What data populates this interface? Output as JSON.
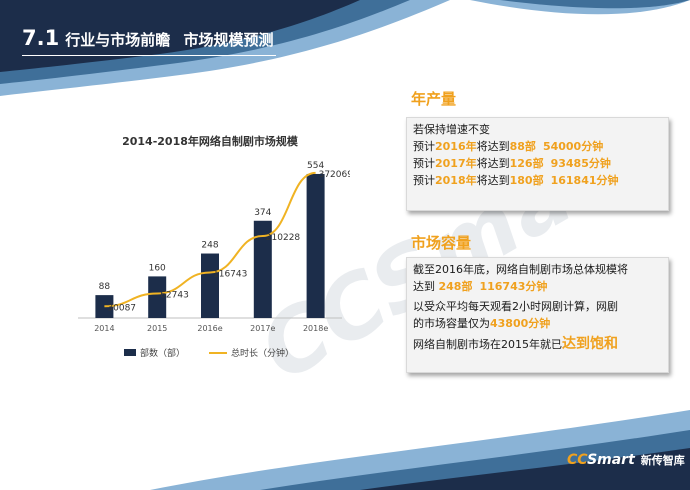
{
  "header": {
    "number": "7.1",
    "title_a": "行业与市场前瞻",
    "title_b": "市场规模预测"
  },
  "colors": {
    "navy": "#1c2d4a",
    "accent": "#f0a11e",
    "line": "#f0b323"
  },
  "chart_data": {
    "type": "bar",
    "title": "2014-2018年网络自制剧市场规模",
    "categories": [
      "2014",
      "2015",
      "2016e",
      "2017e",
      "2018e"
    ],
    "series": [
      {
        "name": "部数（部）",
        "type": "bar",
        "values": [
          88,
          160,
          248,
          374,
          554
        ]
      },
      {
        "name": "总时长（分钟）",
        "type": "line",
        "values": [
          30087,
          62743,
          116743,
          210228,
          372069
        ]
      }
    ],
    "ylim_bar": [
      0,
      600
    ],
    "ylim_line": [
      0,
      400000
    ],
    "grid": false,
    "legend": "bottom"
  },
  "annual_output": {
    "title": "年产量",
    "line1": "若保持增速不变",
    "rows": [
      {
        "prefix": "预计",
        "year": "2016年",
        "mid": "将达到",
        "count": "88部",
        "minutes": "54000分钟"
      },
      {
        "prefix": "预计",
        "year": "2017年",
        "mid": "将达到",
        "count": "126部",
        "minutes": "93485分钟"
      },
      {
        "prefix": "预计",
        "year": "2018年",
        "mid": "将达到",
        "count": "180部",
        "minutes": "161841分钟"
      }
    ]
  },
  "capacity": {
    "title": "市场容量",
    "p1_a": "截至2016年底，网络自制剧市场总体规模将",
    "p1_b": "达到 ",
    "p1_count": "248部",
    "p1_minutes": "116743分钟",
    "p2_a": "以受众平均每天观看2小时网剧计算，网剧",
    "p2_b": "的市场容量仅为",
    "p2_minutes": "43800分钟",
    "p3_a": "网络自制剧市场在2015年就已",
    "p3_b": "达到饱和"
  },
  "watermark": "CCSmart",
  "logo": {
    "cc": "CC",
    "smart": "Smart",
    "cn": "新传智库"
  }
}
